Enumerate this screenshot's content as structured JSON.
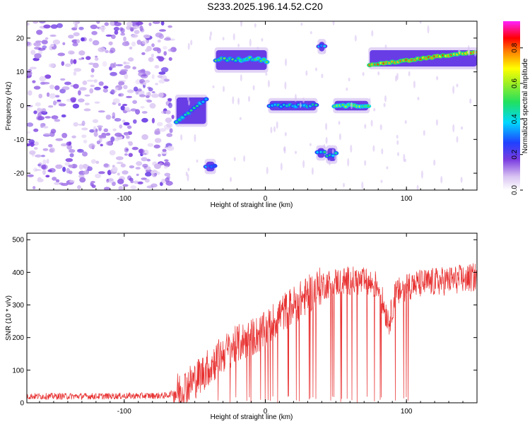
{
  "title": "S233.2025.196.14.52.C20",
  "chart_data": [
    {
      "type": "heatmap",
      "xlabel": "Height of straight line (km)",
      "ylabel": "Frequency (Hz)",
      "xlim": [
        -169,
        150
      ],
      "ylim": [
        -25,
        25
      ],
      "xticks": [
        -100,
        0,
        100
      ],
      "yticks": [
        -20,
        -10,
        0,
        10,
        20
      ],
      "colorbar": {
        "label": "Normalized spectral amplitude",
        "range": [
          0,
          0.95
        ],
        "ticks": [
          0.0,
          0.2,
          0.4,
          0.6,
          0.8
        ],
        "colormap": "rainbow (white, violet, blue, cyan, green, yellow, red, magenta)"
      },
      "features": [
        {
          "x": [
            -169,
            -65
          ],
          "y": [
            -25,
            25
          ],
          "level": 0.1,
          "kind": "noise"
        },
        {
          "x": [
            -63,
            -42
          ],
          "y": [
            -5,
            2
          ],
          "level": 0.4,
          "kind": "rising band"
        },
        {
          "x": [
            -42,
            -36
          ],
          "y": [
            -19,
            -17
          ],
          "level": 0.3,
          "kind": "blob"
        },
        {
          "x": [
            -35,
            1
          ],
          "y": [
            11,
            16
          ],
          "level": 0.5,
          "kind": "band"
        },
        {
          "x": [
            3,
            36
          ],
          "y": [
            -1,
            1
          ],
          "level": 0.4,
          "kind": "band"
        },
        {
          "x": [
            38,
            42
          ],
          "y": [
            16.5,
            18.5
          ],
          "level": 0.3,
          "kind": "blob"
        },
        {
          "x": [
            37,
            42
          ],
          "y": [
            -15,
            -13
          ],
          "level": 0.4,
          "kind": "blob"
        },
        {
          "x": [
            44,
            50
          ],
          "y": [
            -16,
            -13
          ],
          "level": 0.4,
          "kind": "blob"
        },
        {
          "x": [
            49,
            73
          ],
          "y": [
            -1,
            1
          ],
          "level": 0.6,
          "kind": "band"
        },
        {
          "x": [
            74,
            150
          ],
          "y": [
            12,
            16
          ],
          "level": 0.8,
          "kind": "rising band"
        }
      ]
    },
    {
      "type": "line",
      "xlabel": "Height of straight line (km)",
      "ylabel": "SNR (10 * v/v)",
      "xlim": [
        -169,
        150
      ],
      "ylim": [
        0,
        520
      ],
      "xticks": [
        -100,
        0,
        100
      ],
      "yticks": [
        0,
        100,
        200,
        300,
        400,
        500
      ],
      "color": "#e83030",
      "trend": {
        "x": [
          -169,
          -120,
          -70,
          -60,
          -50,
          -40,
          -30,
          -20,
          -10,
          0,
          10,
          20,
          30,
          40,
          50,
          60,
          70,
          80,
          85,
          88,
          92,
          100,
          120,
          140,
          150
        ],
        "y": [
          20,
          20,
          22,
          40,
          70,
          110,
          150,
          180,
          200,
          220,
          270,
          300,
          330,
          360,
          370,
          375,
          370,
          360,
          280,
          250,
          330,
          360,
          370,
          380,
          385
        ]
      }
    }
  ]
}
